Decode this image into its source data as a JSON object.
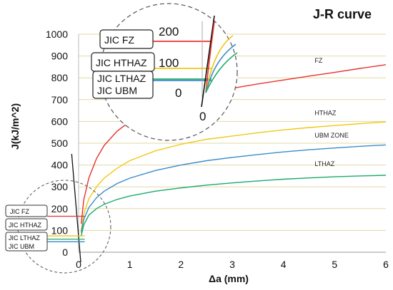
{
  "chart_data": {
    "type": "line",
    "title": "J-R curve",
    "xlabel": "Δa (mm)",
    "ylabel": "J(kJ/m^2)",
    "xlim": [
      0,
      6
    ],
    "ylim": [
      0,
      1000
    ],
    "x_ticks": [
      "0",
      "1",
      "2",
      "3",
      "4",
      "5",
      "6"
    ],
    "y_ticks": [
      "0",
      "100",
      "200",
      "300",
      "400",
      "500",
      "600",
      "700",
      "800",
      "900",
      "1000"
    ],
    "grid": "horizontal",
    "series": [
      {
        "name": "FZ",
        "color": "#e8322c",
        "x": [
          0.05,
          0.1,
          0.2,
          0.35,
          0.5,
          0.75,
          1.0,
          1.5,
          2.0,
          2.5,
          3.0,
          3.5,
          4.0,
          4.5,
          5.0,
          5.5,
          6.0
        ],
        "y": [
          130,
          240,
          340,
          430,
          490,
          555,
          600,
          660,
          700,
          730,
          752,
          772,
          790,
          808,
          825,
          843,
          860
        ]
      },
      {
        "name": "HTHAZ",
        "color": "#f0c814",
        "x": [
          0.05,
          0.1,
          0.2,
          0.35,
          0.5,
          0.75,
          1.0,
          1.5,
          2.0,
          2.5,
          3.0,
          3.5,
          4.0,
          4.5,
          5.0,
          5.5,
          6.0
        ],
        "y": [
          100,
          175,
          245,
          300,
          340,
          385,
          420,
          465,
          495,
          518,
          533,
          548,
          561,
          572,
          581,
          590,
          598
        ]
      },
      {
        "name": "UBM ZONE",
        "color": "#3a8cc8",
        "x": [
          0.05,
          0.1,
          0.2,
          0.35,
          0.5,
          0.75,
          1.0,
          1.5,
          2.0,
          2.5,
          3.0,
          3.5,
          4.0,
          4.5,
          5.0,
          5.5,
          6.0
        ],
        "y": [
          90,
          150,
          205,
          250,
          280,
          315,
          340,
          375,
          400,
          420,
          435,
          448,
          460,
          470,
          478,
          486,
          492
        ]
      },
      {
        "name": "LTHAZ",
        "color": "#1caa6a",
        "x": [
          0.05,
          0.1,
          0.2,
          0.35,
          0.5,
          0.75,
          1.0,
          1.5,
          2.0,
          2.5,
          3.0,
          3.5,
          4.0,
          4.5,
          5.0,
          5.5,
          6.0
        ],
        "y": [
          75,
          125,
          170,
          200,
          220,
          242,
          258,
          280,
          295,
          308,
          318,
          327,
          335,
          341,
          346,
          350,
          353
        ]
      }
    ],
    "blunting_line": {
      "color": "#111111",
      "x": [
        0.0,
        0.2
      ],
      "y": [
        0,
        320
      ]
    },
    "jic_lines": [
      {
        "label": "JIC FZ",
        "value": 165,
        "color": "#e8322c"
      },
      {
        "label": "JIC HTHAZ",
        "value": 75,
        "color": "#f0c814"
      },
      {
        "label": "JIC LTHAZ",
        "value": 60,
        "color": "#1caa6a"
      },
      {
        "label": "JIC UBM",
        "value": 48,
        "color": "#3a8cc8"
      }
    ],
    "zoom_inset": {
      "ticks": [
        "200",
        "100",
        "0",
        "0"
      ]
    }
  }
}
